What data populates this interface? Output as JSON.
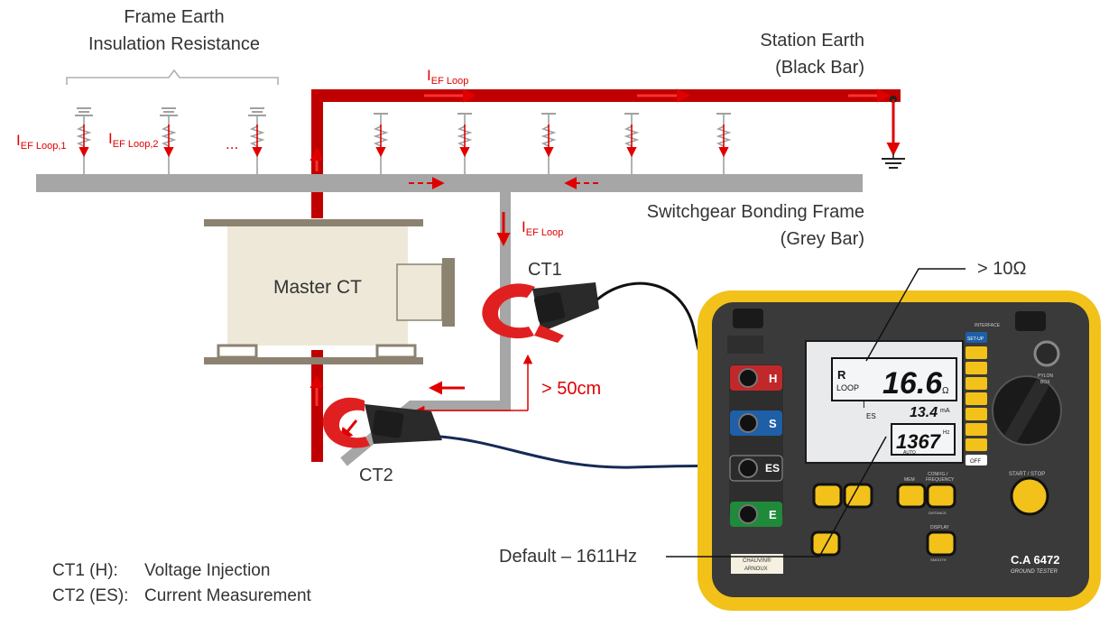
{
  "labels": {
    "frame_earth_line1": "Frame Earth",
    "frame_earth_line2": "Insulation Resistance",
    "station_earth_line1": "Station Earth",
    "station_earth_line2": "(Black Bar)",
    "switchgear_line1": "Switchgear Bonding Frame",
    "switchgear_line2": "(Grey Bar)",
    "master_ct": "Master CT",
    "ct1": "CT1",
    "ct2": "CT2",
    "distance": "> 50cm",
    "resistance_threshold": "> 10Ω",
    "default_freq": "Default – 1611Hz",
    "current_base": "I",
    "current_loop_sub": "EF Loop",
    "current_loop1_sub": "EF Loop,1",
    "current_loop2_sub": "EF Loop,2",
    "ellipsis": "...",
    "legend_ct1_key": "CT1 (H):",
    "legend_ct1_value": "Voltage Injection",
    "legend_ct2_key": "CT2 (ES):",
    "legend_ct2_value": "Current Measurement"
  },
  "meter": {
    "model": "C.A 6472",
    "subtitle": "GROUND TESTER",
    "brand_line1": "CHAUVIN®",
    "brand_line2": "ARNOUX",
    "interface_label": "INTERFACE",
    "pylon_label1": "PYLON",
    "pylon_label2": "BOX",
    "start_stop": "START / STOP",
    "mem": "MEM",
    "config_line1": "CONFIG./",
    "config_line2": "FREQUENCY",
    "display_btn": "DISPLAY",
    "smooth": "SMOOTH",
    "distance_small": "DISTANCE",
    "setup": "SET-UP",
    "off": "OFF",
    "terminals": [
      "H",
      "S",
      "ES",
      "E"
    ],
    "terminal_colors": [
      "#c0282a",
      "#1e5fa8",
      "#2b2b2b",
      "#1f8a3a"
    ],
    "screen": {
      "r_label": "R",
      "loop_label": "LOOP",
      "main_value": "16.6",
      "main_unit": "Ω",
      "current_label": "I",
      "current_sub": "ES",
      "current_value": "13.4",
      "current_unit": "mA",
      "freq_value": "1367",
      "freq_unit": "Hz",
      "auto": "AUTO"
    }
  },
  "colors": {
    "station_earth": "#c00000",
    "grey_bar": "#a6a6a6",
    "current_arrow": "#e00000",
    "meter_body": "#3a3a3a",
    "meter_frame": "#f2c21b",
    "ct_clamp": "#e02020",
    "master_ct_body": "#ede8d8",
    "master_ct_rail": "#8c8270"
  }
}
